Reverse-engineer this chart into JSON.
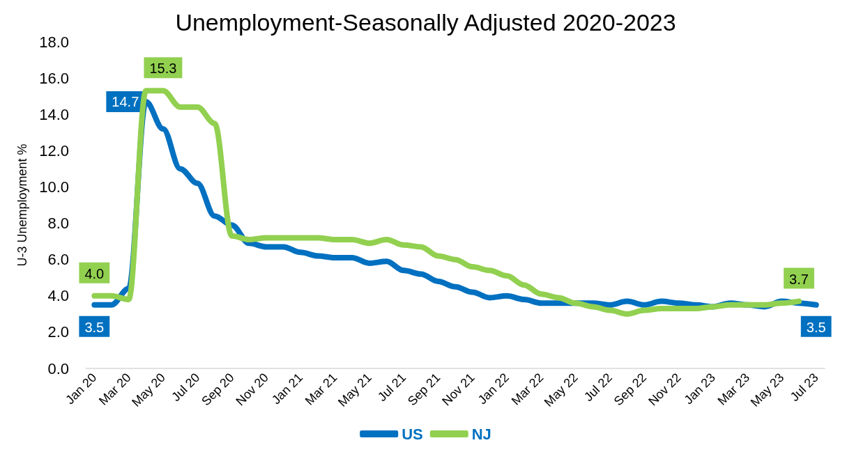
{
  "chart_data": {
    "type": "line",
    "title": "Unemployment-Seasonally Adjusted 2020-2023",
    "ylabel": "U-3 Unemployment %",
    "categories": [
      "Jan 20",
      null,
      "Mar 20",
      null,
      "May 20",
      null,
      "Jul 20",
      null,
      "Sep 20",
      null,
      "Nov 20",
      null,
      "Jan 21",
      null,
      "Mar 21",
      null,
      "May 21",
      null,
      "Jul 21",
      null,
      "Sep 21",
      null,
      "Nov 21",
      null,
      "Jan 22",
      null,
      "Mar 22",
      null,
      "May 22",
      null,
      "Jul 22",
      null,
      "Sep 22",
      null,
      "Nov 22",
      null,
      "Jan 23",
      null,
      "Mar 23",
      null,
      "May 23",
      null,
      "Jul 23"
    ],
    "series": [
      {
        "name": "US",
        "color": "#0070c0",
        "values": [
          3.5,
          3.5,
          4.4,
          14.7,
          13.2,
          11.0,
          10.2,
          8.4,
          7.9,
          6.9,
          6.7,
          6.7,
          6.4,
          6.2,
          6.1,
          6.1,
          5.8,
          5.9,
          5.4,
          5.2,
          4.8,
          4.5,
          4.2,
          3.9,
          4.0,
          3.8,
          3.6,
          3.6,
          3.6,
          3.6,
          3.5,
          3.7,
          3.5,
          3.7,
          3.6,
          3.5,
          3.4,
          3.6,
          3.5,
          3.4,
          3.7,
          3.6,
          3.5
        ],
        "value_labels": [
          "3.5",
          null,
          null,
          "14.7",
          null,
          null,
          null,
          null,
          null,
          null,
          null,
          null,
          null,
          null,
          null,
          null,
          null,
          null,
          null,
          null,
          null,
          null,
          null,
          null,
          null,
          null,
          null,
          null,
          null,
          null,
          null,
          null,
          null,
          null,
          null,
          null,
          null,
          null,
          null,
          null,
          null,
          null,
          "3.5"
        ]
      },
      {
        "name": "NJ",
        "color": "#92d050",
        "values": [
          4.0,
          4.0,
          3.8,
          15.3,
          15.3,
          14.4,
          14.4,
          13.5,
          7.3,
          7.1,
          7.2,
          7.2,
          7.2,
          7.2,
          7.1,
          7.1,
          6.9,
          7.1,
          6.8,
          6.7,
          6.2,
          6.0,
          5.6,
          5.4,
          5.1,
          4.6,
          4.1,
          3.9,
          3.6,
          3.4,
          3.2,
          3.0,
          3.2,
          3.3,
          3.3,
          3.3,
          3.4,
          3.5,
          3.5,
          3.5,
          3.6,
          3.7,
          null
        ],
        "value_labels": [
          "4.0",
          null,
          null,
          null,
          "15.3",
          null,
          null,
          null,
          null,
          null,
          null,
          null,
          null,
          null,
          null,
          null,
          null,
          null,
          null,
          null,
          null,
          null,
          null,
          null,
          null,
          null,
          null,
          null,
          null,
          null,
          null,
          null,
          null,
          null,
          null,
          null,
          null,
          null,
          null,
          null,
          null,
          "3.7",
          null
        ]
      }
    ],
    "ylim": [
      0,
      18
    ],
    "yticks": [
      {
        "value": 0,
        "label": "0.0"
      },
      {
        "value": 2,
        "label": "2.0"
      },
      {
        "value": 4,
        "label": "4.0"
      },
      {
        "value": 6,
        "label": "6.0"
      },
      {
        "value": 8,
        "label": "8.0"
      },
      {
        "value": 10,
        "label": "10.0"
      },
      {
        "value": 12,
        "label": "12.0"
      },
      {
        "value": 14,
        "label": "14.0"
      },
      {
        "value": 16,
        "label": "16.0"
      },
      {
        "value": 18,
        "label": "18.0"
      }
    ],
    "grid": false,
    "legend": "bottom",
    "marker": "none",
    "line_style": "solid"
  }
}
